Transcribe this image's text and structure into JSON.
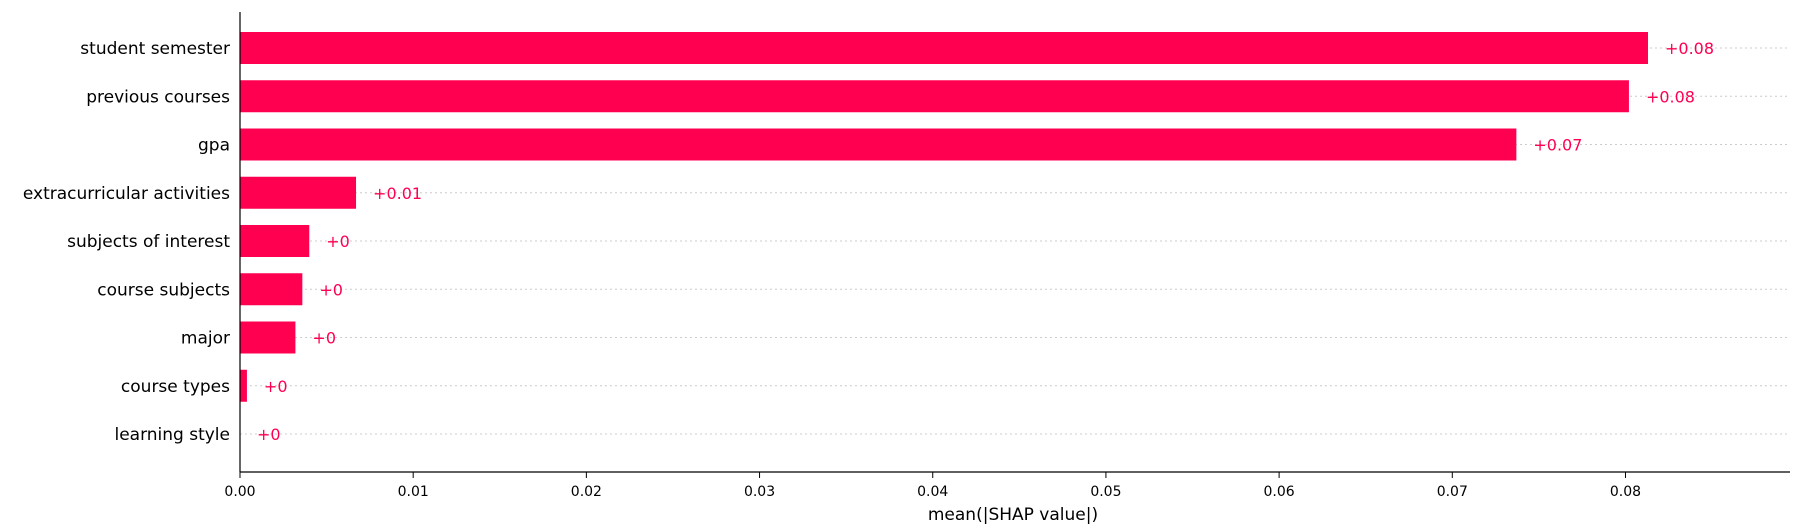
{
  "chart_data": {
    "type": "bar",
    "orientation": "horizontal",
    "categories": [
      "student semester",
      "previous courses",
      "gpa",
      "extracurricular activities",
      "subjects of interest",
      "course subjects",
      "major",
      "course types",
      "learning style"
    ],
    "values": [
      0.0813,
      0.0802,
      0.0737,
      0.0067,
      0.004,
      0.0036,
      0.0032,
      0.0004,
      0.0
    ],
    "value_labels": [
      "+0.08",
      "+0.08",
      "+0.07",
      "+0.01",
      "+0",
      "+0",
      "+0",
      "+0",
      "+0"
    ],
    "xlabel": "mean(|SHAP value|)",
    "ylabel": "",
    "xlim": [
      0,
      0.0895
    ],
    "xticks": [
      0.0,
      0.01,
      0.02,
      0.03,
      0.04,
      0.05,
      0.06,
      0.07,
      0.08
    ],
    "xtick_labels": [
      "0.00",
      "0.01",
      "0.02",
      "0.03",
      "0.04",
      "0.05",
      "0.06",
      "0.07",
      "0.08"
    ],
    "bar_color": "#ff0051",
    "grid": "horizontal dotted lines per category"
  }
}
